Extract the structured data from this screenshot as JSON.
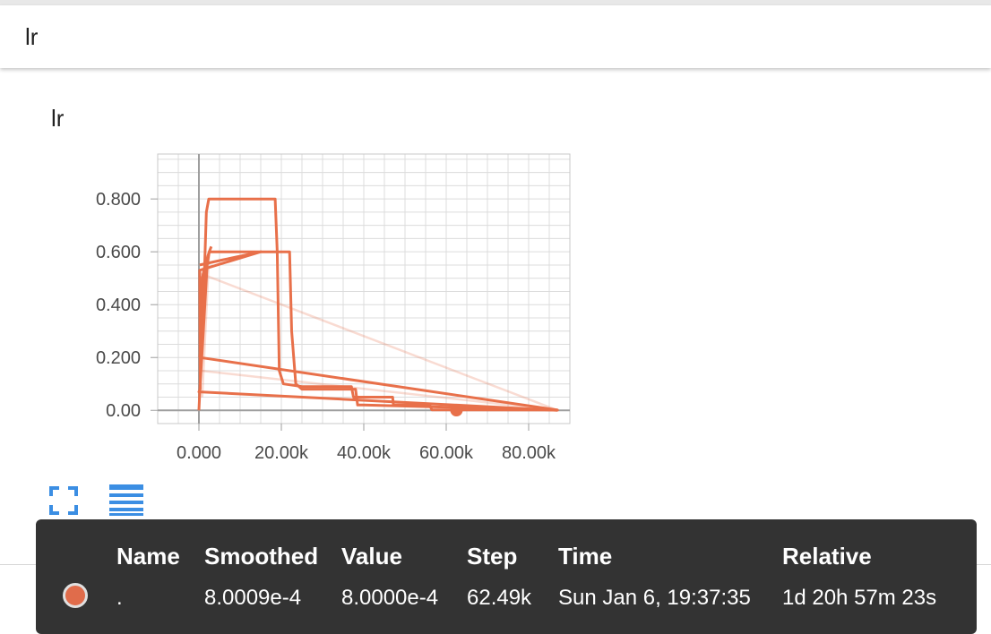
{
  "header": {
    "title": "lr"
  },
  "chart_data": {
    "type": "line",
    "title": "lr",
    "xlabel": "",
    "ylabel": "",
    "xlim": [
      -10000,
      90000
    ],
    "ylim": [
      -0.05,
      0.97
    ],
    "x_ticks": [
      0,
      20000,
      40000,
      60000,
      80000
    ],
    "x_tick_labels": [
      "0.000",
      "20.00k",
      "40.00k",
      "60.00k",
      "80.00k"
    ],
    "y_ticks": [
      0,
      0.2,
      0.4,
      0.6,
      0.8
    ],
    "y_tick_labels": [
      "0.00",
      "0.200",
      "0.400",
      "0.600",
      "0.800"
    ],
    "grid": true,
    "line_color": "#e8704a",
    "series": [
      {
        "values": [
          [
            200,
            0.2
          ],
          [
            600,
            0.25
          ],
          [
            1200,
            0.45
          ],
          [
            1500,
            0.6
          ],
          [
            1800,
            0.75
          ],
          [
            2400,
            0.8
          ],
          [
            18500,
            0.8
          ],
          [
            19000,
            0.6
          ],
          [
            19500,
            0.15
          ],
          [
            20500,
            0.1
          ],
          [
            25000,
            0.09
          ],
          [
            37000,
            0.09
          ],
          [
            37500,
            0.05
          ],
          [
            47000,
            0.05
          ],
          [
            47200,
            0.02
          ],
          [
            56000,
            0.02
          ],
          [
            56500,
            0.002
          ],
          [
            87000,
            0.001
          ]
        ]
      },
      {
        "values": [
          [
            300,
            0.22
          ],
          [
            800,
            0.5
          ],
          [
            1500,
            0.55
          ],
          [
            2500,
            0.6
          ],
          [
            22000,
            0.6
          ],
          [
            22500,
            0.3
          ],
          [
            23500,
            0.1
          ],
          [
            25000,
            0.08
          ],
          [
            38000,
            0.08
          ],
          [
            38500,
            0.02
          ],
          [
            40000,
            0.02
          ],
          [
            87000,
            0.001
          ],
          [
            200,
            0.2
          ]
        ]
      },
      {
        "values": [
          [
            200,
            0.55
          ],
          [
            6000,
            0.57
          ],
          [
            15000,
            0.6
          ],
          [
            200,
            0.53
          ],
          [
            300,
            0.08
          ],
          [
            0,
            0.07
          ],
          [
            200,
            0.07
          ],
          [
            87000,
            0.0
          ]
        ]
      },
      {
        "values": [
          [
            0,
            0.0
          ],
          [
            300,
            0.1
          ],
          [
            900,
            0.25
          ],
          [
            2000,
            0.55
          ],
          [
            2500,
            0.6
          ],
          [
            3000,
            0.62
          ]
        ]
      }
    ],
    "faded_series": [
      {
        "values": [
          [
            0,
            0.52
          ],
          [
            87000,
            0.0
          ]
        ]
      },
      {
        "values": [
          [
            800,
            0.05
          ],
          [
            2500,
            0.6
          ],
          [
            8000,
            0.6
          ]
        ]
      },
      {
        "values": [
          [
            500,
            0.15
          ],
          [
            87000,
            0.0
          ]
        ]
      }
    ],
    "hover_point": {
      "x": 62490,
      "y": 0.0008
    }
  },
  "controls": {
    "expand": "fullscreen-icon",
    "data_table": "list-icon"
  },
  "tooltip": {
    "headers": [
      "Name",
      "Smoothed",
      "Value",
      "Step",
      "Time",
      "Relative"
    ],
    "row": {
      "color": "#e06c4b",
      "name": ".",
      "smoothed": "8.0009e-4",
      "value": "8.0000e-4",
      "step": "62.49k",
      "time": "Sun Jan 6, 19:37:35",
      "relative": "1d 20h 57m 23s"
    }
  }
}
